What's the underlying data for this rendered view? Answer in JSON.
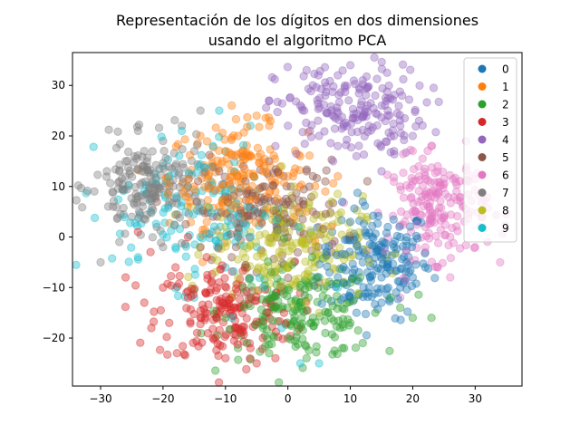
{
  "chart_data": {
    "type": "scatter",
    "title": [
      "Representación de los dígitos en dos dimensiones",
      "usando el algoritmo PCA"
    ],
    "xlabel": "",
    "ylabel": "",
    "xlim": [
      -34.5,
      37.5
    ],
    "ylim": [
      -29.5,
      36.5
    ],
    "xticks": [
      -30,
      -20,
      -10,
      0,
      10,
      20,
      30
    ],
    "yticks": [
      -20,
      -10,
      0,
      10,
      20,
      30
    ],
    "xtick_labels": [
      "−30",
      "−20",
      "−10",
      "0",
      "10",
      "20",
      "30"
    ],
    "ytick_labels": [
      "−20",
      "−10",
      "0",
      "10",
      "20",
      "30"
    ],
    "grid": false,
    "legend_position": "top-right",
    "marker_alpha": 0.4,
    "series": [
      {
        "name": "0",
        "color": "#1f77b4",
        "center": [
          14,
          -5
        ],
        "spread": [
          4.5,
          5.5
        ],
        "count": 180,
        "points": [
          [
            6,
            -2
          ],
          [
            8,
            -8
          ],
          [
            10,
            -12
          ],
          [
            12,
            -5
          ],
          [
            14,
            -3
          ],
          [
            15,
            -8
          ],
          [
            16,
            -6
          ],
          [
            17,
            -2
          ],
          [
            18,
            -10
          ],
          [
            19,
            -5
          ],
          [
            20,
            -8
          ],
          [
            22,
            -6
          ],
          [
            11,
            -15
          ],
          [
            13,
            -10
          ],
          [
            15,
            -13
          ],
          [
            16,
            2
          ],
          [
            18,
            0
          ],
          [
            10,
            3
          ],
          [
            12,
            7
          ],
          [
            20,
            -1
          ]
        ]
      },
      {
        "name": "1",
        "color": "#ff7f0e",
        "center": [
          -8,
          12
        ],
        "spread": [
          5.5,
          5
        ],
        "count": 180,
        "points": [
          [
            -15,
            10
          ],
          [
            -12,
            14
          ],
          [
            -10,
            17
          ],
          [
            -8,
            20
          ],
          [
            -6,
            16
          ],
          [
            -4,
            13
          ],
          [
            -2,
            9
          ],
          [
            0,
            12
          ],
          [
            -11,
            6
          ],
          [
            -13,
            3
          ],
          [
            -7,
            5
          ],
          [
            3,
            5
          ],
          [
            6,
            9
          ],
          [
            -3,
            22
          ],
          [
            -5,
            24
          ],
          [
            -9,
            26
          ],
          [
            2,
            16
          ],
          [
            5,
            2
          ],
          [
            8,
            12
          ],
          [
            -14,
            20
          ]
        ]
      },
      {
        "name": "2",
        "color": "#2ca02c",
        "center": [
          2,
          -15
        ],
        "spread": [
          6,
          4.5
        ],
        "count": 180,
        "points": [
          [
            -10,
            -16
          ],
          [
            -6,
            -12
          ],
          [
            -4,
            -18
          ],
          [
            -2,
            -14
          ],
          [
            0,
            -20
          ],
          [
            2,
            -10
          ],
          [
            4,
            -16
          ],
          [
            6,
            -19
          ],
          [
            8,
            -13
          ],
          [
            10,
            -17
          ],
          [
            12,
            -21
          ],
          [
            14,
            -15
          ],
          [
            -8,
            -22
          ],
          [
            -3,
            -23
          ],
          [
            3,
            -24
          ],
          [
            5,
            -8
          ],
          [
            18,
            -14
          ],
          [
            20,
            -16
          ],
          [
            23,
            -16
          ],
          [
            9,
            -22
          ]
        ]
      },
      {
        "name": "3",
        "color": "#d62728",
        "center": [
          -10,
          -15
        ],
        "spread": [
          5.5,
          5
        ],
        "count": 180,
        "points": [
          [
            -23,
            -13
          ],
          [
            -20,
            -10
          ],
          [
            -18,
            -6
          ],
          [
            -16,
            -12
          ],
          [
            -14,
            -16
          ],
          [
            -12,
            -20
          ],
          [
            -10,
            -24
          ],
          [
            -8,
            -18
          ],
          [
            -6,
            -22
          ],
          [
            -4,
            -20
          ],
          [
            -22,
            -3
          ],
          [
            -26,
            -8
          ],
          [
            -13,
            -4
          ],
          [
            -16,
            0
          ],
          [
            -11,
            -9
          ],
          [
            -5,
            -25
          ],
          [
            -2,
            -24
          ],
          [
            -19,
            -17
          ],
          [
            -9,
            -12
          ],
          [
            -24,
            1
          ]
        ]
      },
      {
        "name": "4",
        "color": "#9467bd",
        "center": [
          10,
          25
        ],
        "spread": [
          6,
          4.5
        ],
        "count": 180,
        "points": [
          [
            -2,
            18
          ],
          [
            0,
            22
          ],
          [
            2,
            26
          ],
          [
            4,
            30
          ],
          [
            6,
            28
          ],
          [
            8,
            32
          ],
          [
            10,
            34
          ],
          [
            12,
            31
          ],
          [
            14,
            28
          ],
          [
            16,
            25
          ],
          [
            18,
            22
          ],
          [
            20,
            20
          ],
          [
            5,
            20
          ],
          [
            8,
            18
          ],
          [
            11,
            16
          ],
          [
            13,
            22
          ],
          [
            -3,
            27
          ],
          [
            17,
            17
          ],
          [
            3,
            33
          ],
          [
            15,
            13
          ]
        ]
      },
      {
        "name": "5",
        "color": "#8c564b",
        "center": [
          -3,
          5
        ],
        "spread": [
          6,
          5
        ],
        "count": 150,
        "points": [
          [
            -12,
            4
          ],
          [
            -10,
            8
          ],
          [
            -8,
            0
          ],
          [
            -6,
            6
          ],
          [
            -4,
            10
          ],
          [
            -2,
            3
          ],
          [
            0,
            7
          ],
          [
            2,
            1
          ],
          [
            4,
            5
          ],
          [
            6,
            11
          ],
          [
            -9,
            -4
          ],
          [
            -5,
            -7
          ],
          [
            1,
            -5
          ],
          [
            3,
            13
          ],
          [
            -14,
            -2
          ],
          [
            -3,
            15
          ],
          [
            7,
            -3
          ],
          [
            -11,
            13
          ],
          [
            5,
            -9
          ],
          [
            -7,
            -11
          ]
        ]
      },
      {
        "name": "6",
        "color": "#e377c2",
        "center": [
          24,
          6
        ],
        "spread": [
          4,
          5
        ],
        "count": 180,
        "points": [
          [
            18,
            10
          ],
          [
            20,
            5
          ],
          [
            21,
            12
          ],
          [
            22,
            2
          ],
          [
            23,
            8
          ],
          [
            24,
            14
          ],
          [
            25,
            4
          ],
          [
            26,
            0
          ],
          [
            27,
            9
          ],
          [
            28,
            6
          ],
          [
            29,
            11
          ],
          [
            30,
            -2
          ],
          [
            22,
            -3
          ],
          [
            24,
            -6
          ],
          [
            26,
            -8
          ],
          [
            20,
            17
          ],
          [
            23,
            18
          ],
          [
            31,
            4
          ],
          [
            34,
            -5
          ],
          [
            18,
            -12
          ]
        ]
      },
      {
        "name": "7",
        "color": "#7f7f7f",
        "center": [
          -22,
          10
        ],
        "spread": [
          4.5,
          4.5
        ],
        "count": 180,
        "points": [
          [
            -31,
            9
          ],
          [
            -29,
            13
          ],
          [
            -28,
            6
          ],
          [
            -27,
            11
          ],
          [
            -26,
            15
          ],
          [
            -25,
            4
          ],
          [
            -24,
            8
          ],
          [
            -23,
            17
          ],
          [
            -22,
            12
          ],
          [
            -21,
            2
          ],
          [
            -20,
            19
          ],
          [
            -19,
            7
          ],
          [
            -18,
            14
          ],
          [
            -17,
            22
          ],
          [
            -16,
            10
          ],
          [
            -30,
            -5
          ],
          [
            -27,
            -1
          ],
          [
            -24,
            21
          ],
          [
            -14,
            25
          ],
          [
            -20,
            -2
          ]
        ]
      },
      {
        "name": "8",
        "color": "#bcbd22",
        "center": [
          0,
          -2
        ],
        "spread": [
          6,
          5
        ],
        "count": 180,
        "points": [
          [
            -12,
            -4
          ],
          [
            -10,
            2
          ],
          [
            -8,
            -8
          ],
          [
            -6,
            1
          ],
          [
            -4,
            -3
          ],
          [
            -2,
            4
          ],
          [
            0,
            -6
          ],
          [
            2,
            2
          ],
          [
            4,
            -1
          ],
          [
            6,
            -9
          ],
          [
            8,
            3
          ],
          [
            -5,
            9
          ],
          [
            1,
            10
          ],
          [
            -9,
            -12
          ],
          [
            3,
            -13
          ],
          [
            7,
            7
          ],
          [
            -13,
            6
          ],
          [
            10,
            -4
          ],
          [
            -1,
            14
          ],
          [
            5,
            -15
          ]
        ]
      },
      {
        "name": "9",
        "color": "#17becf",
        "center": [
          -14,
          5
        ],
        "spread": [
          7,
          7
        ],
        "count": 130,
        "points": [
          [
            -22,
            5
          ],
          [
            -20,
            14
          ],
          [
            -18,
            -2
          ],
          [
            -16,
            10
          ],
          [
            -14,
            0
          ],
          [
            -12,
            18
          ],
          [
            -10,
            -6
          ],
          [
            -8,
            3
          ],
          [
            -6,
            22
          ],
          [
            -4,
            -10
          ],
          [
            -24,
            -4
          ],
          [
            -15,
            -12
          ],
          [
            -11,
            25
          ],
          [
            -1,
            -18
          ],
          [
            2,
            -25
          ],
          [
            5,
            -25
          ],
          [
            -17,
            21
          ],
          [
            -9,
            -16
          ],
          [
            8,
            -10
          ],
          [
            -19,
            12
          ]
        ]
      }
    ]
  }
}
